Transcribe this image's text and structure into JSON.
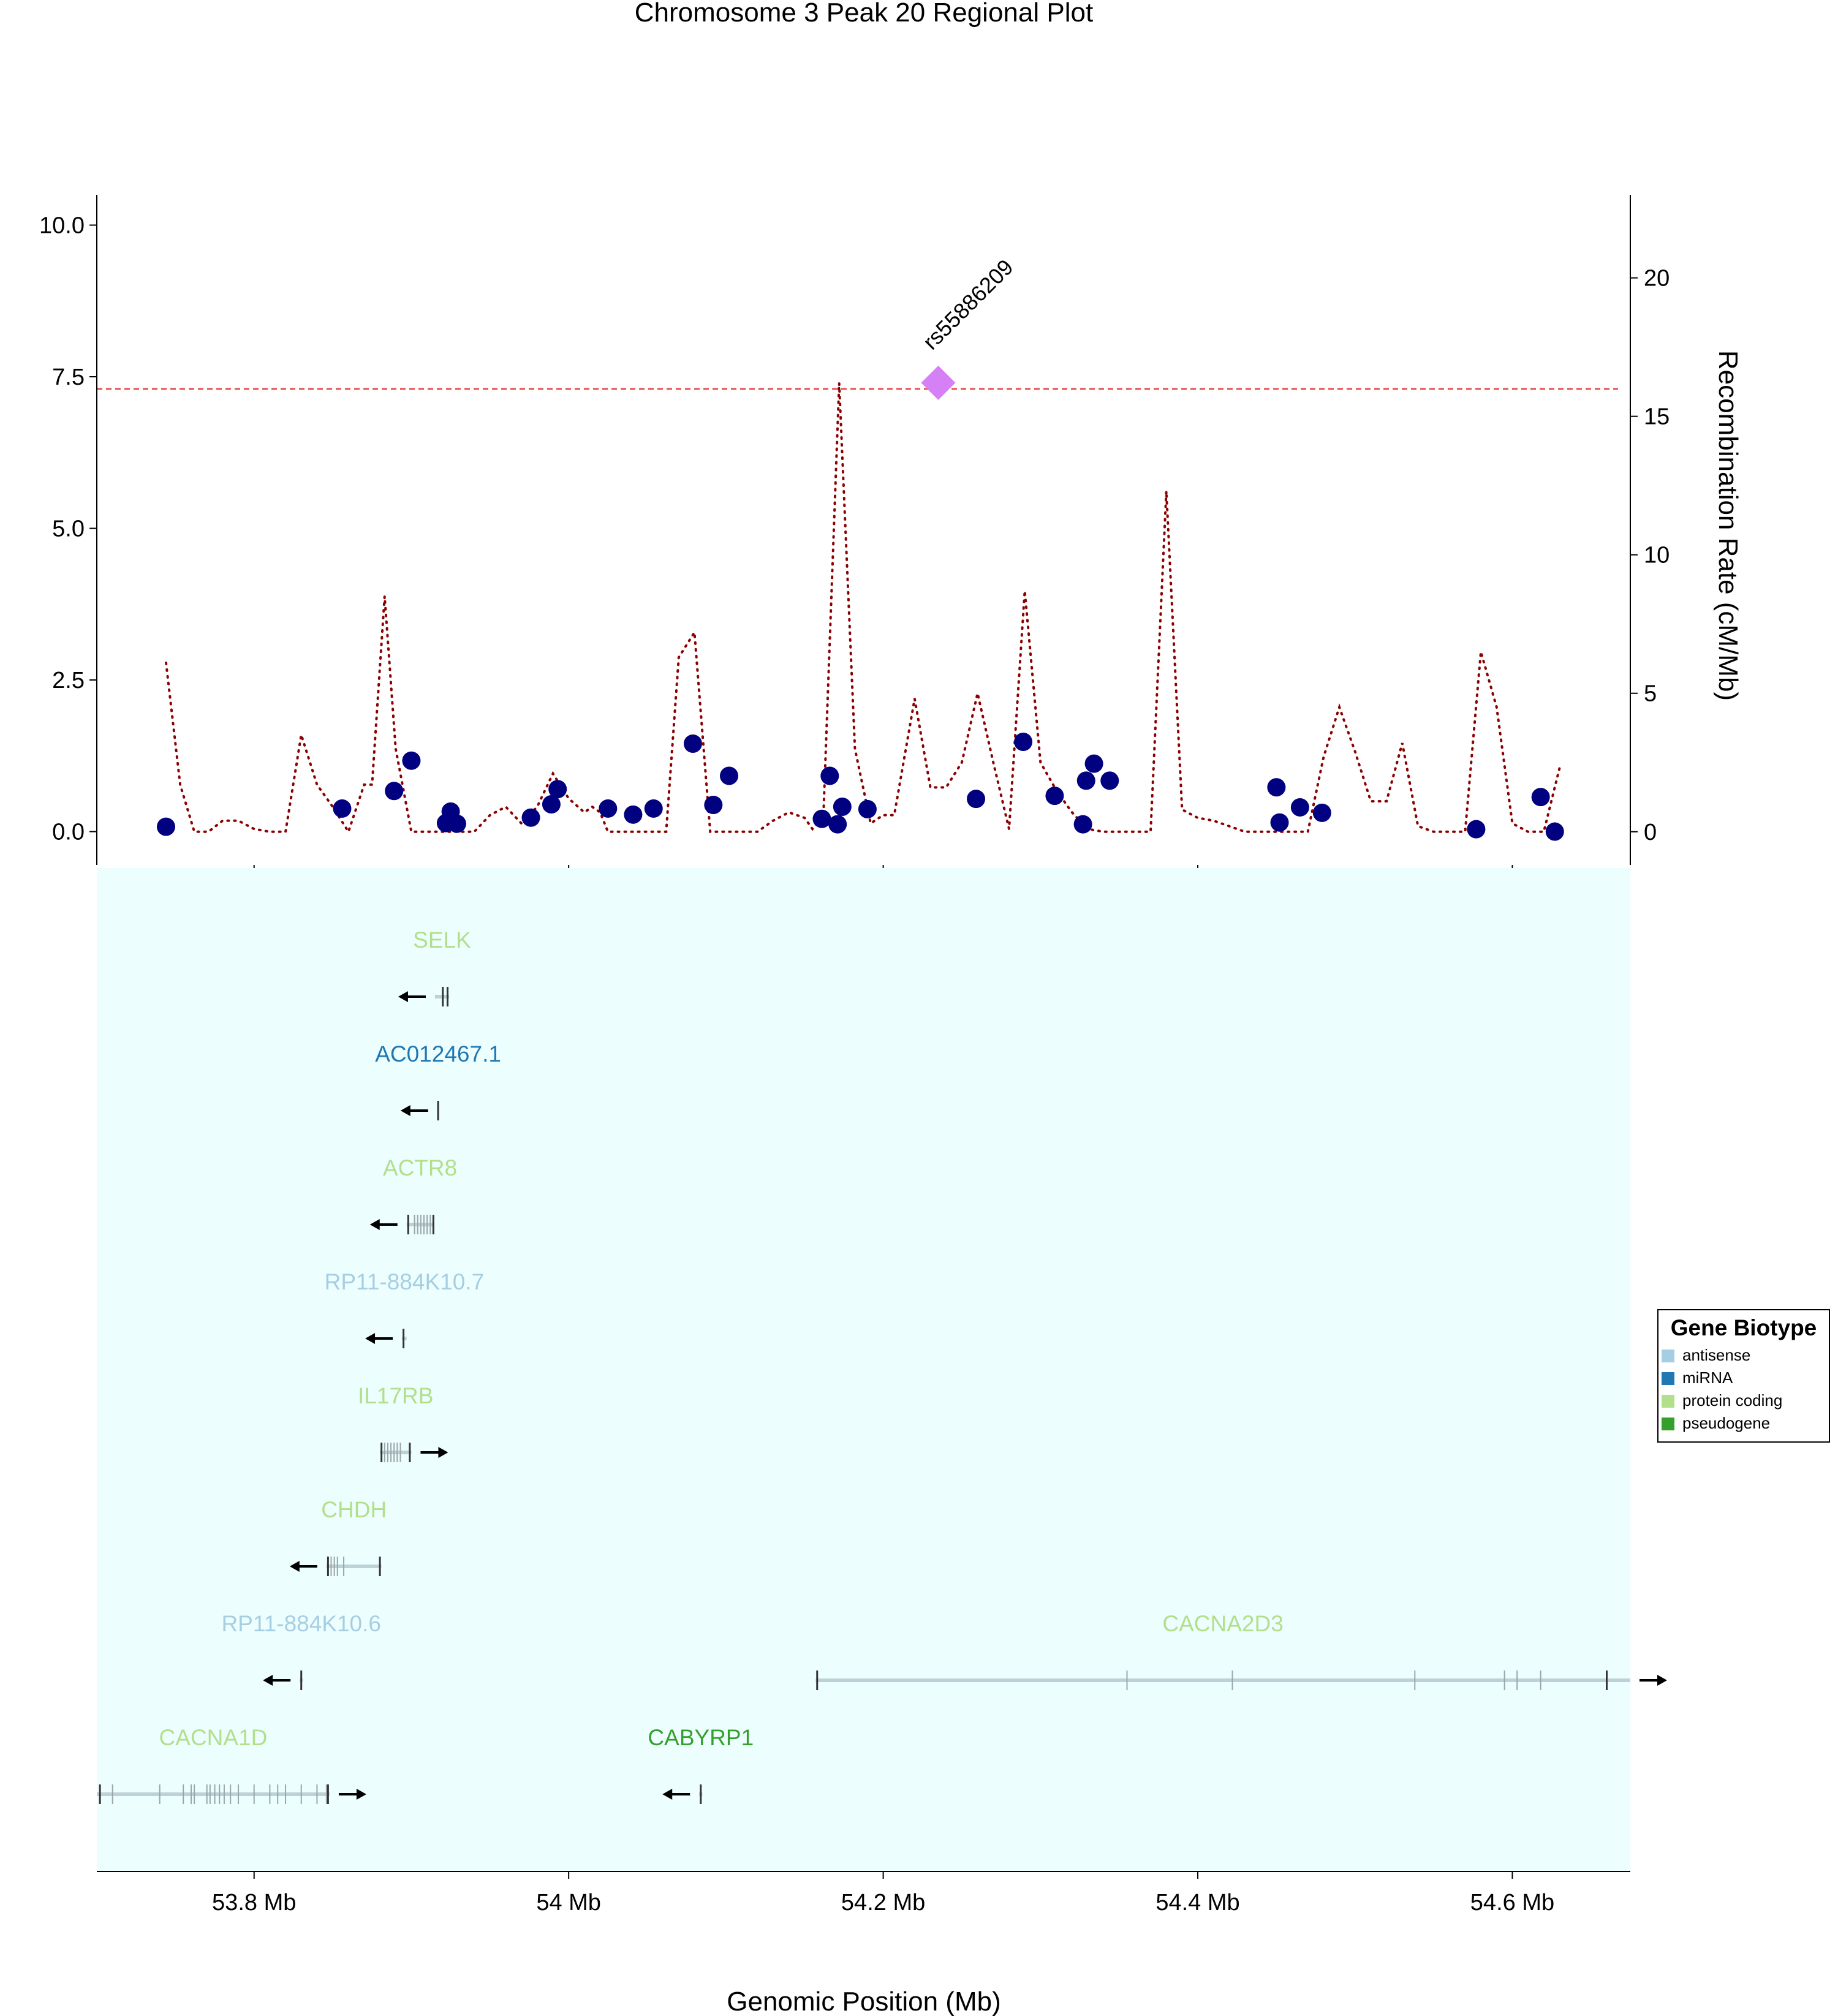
{
  "chart_data": {
    "type": "scatter",
    "title": "Chromosome 3 Peak 20 Regional Plot",
    "xlabel": "Genomic Position (Mb)",
    "y2label": "Recombination Rate (cM/Mb)",
    "xlim": [
      53.7,
      54.675
    ],
    "ylim": [
      -0.55,
      10.5
    ],
    "y2lim": [
      -1.2,
      23
    ],
    "x_ticks": [
      53.8,
      54.0,
      54.2,
      54.4,
      54.6
    ],
    "x_tick_labels": [
      "53.8 Mb",
      "54 Mb",
      "54.2 Mb",
      "54.4 Mb",
      "54.6 Mb"
    ],
    "y_ticks": [
      0,
      2.5,
      5,
      7.5,
      10
    ],
    "y_tick_labels": [
      "0.0",
      "2.5",
      "5.0",
      "7.5",
      "10.0"
    ],
    "y2_ticks": [
      0,
      5,
      10,
      15,
      20
    ],
    "y2_tick_labels": [
      "0",
      "5",
      "10",
      "15",
      "20"
    ],
    "significance_line": 7.3,
    "grid": false,
    "colors": {
      "points": "#000080",
      "lead": "#d580f5",
      "recomb": "#8b0000",
      "sigline": "#e8514f",
      "gene_bg": "#edfefe",
      "antisense": "#a6cee3",
      "miRNA": "#1f78b4",
      "protein_coding": "#b2df8a",
      "pseudogene": "#33a02c"
    },
    "points": [
      {
        "x": 53.744,
        "y": 0.08
      },
      {
        "x": 53.856,
        "y": 0.38
      },
      {
        "x": 53.889,
        "y": 0.67
      },
      {
        "x": 53.9,
        "y": 1.17
      },
      {
        "x": 53.922,
        "y": 0.14
      },
      {
        "x": 53.925,
        "y": 0.33
      },
      {
        "x": 53.929,
        "y": 0.13
      },
      {
        "x": 53.976,
        "y": 0.23
      },
      {
        "x": 53.989,
        "y": 0.45
      },
      {
        "x": 53.993,
        "y": 0.7
      },
      {
        "x": 54.025,
        "y": 0.38
      },
      {
        "x": 54.041,
        "y": 0.28
      },
      {
        "x": 54.054,
        "y": 0.38
      },
      {
        "x": 54.079,
        "y": 1.45
      },
      {
        "x": 54.092,
        "y": 0.44
      },
      {
        "x": 54.102,
        "y": 0.92
      },
      {
        "x": 54.161,
        "y": 0.21
      },
      {
        "x": 54.166,
        "y": 0.92
      },
      {
        "x": 54.171,
        "y": 0.12
      },
      {
        "x": 54.174,
        "y": 0.41
      },
      {
        "x": 54.19,
        "y": 0.37
      },
      {
        "x": 54.259,
        "y": 0.54
      },
      {
        "x": 54.289,
        "y": 1.48
      },
      {
        "x": 54.309,
        "y": 0.59
      },
      {
        "x": 54.327,
        "y": 0.12
      },
      {
        "x": 54.329,
        "y": 0.84
      },
      {
        "x": 54.334,
        "y": 1.12
      },
      {
        "x": 54.344,
        "y": 0.84
      },
      {
        "x": 54.45,
        "y": 0.73
      },
      {
        "x": 54.452,
        "y": 0.15
      },
      {
        "x": 54.465,
        "y": 0.4
      },
      {
        "x": 54.479,
        "y": 0.31
      },
      {
        "x": 54.577,
        "y": 0.04
      },
      {
        "x": 54.618,
        "y": 0.57
      },
      {
        "x": 54.627,
        "y": 0.0
      }
    ],
    "lead_snp": {
      "x": 54.235,
      "y": 7.4,
      "label": "rs55886209"
    },
    "recombination": [
      [
        53.744,
        6.1
      ],
      [
        53.753,
        1.7
      ],
      [
        53.762,
        0.0
      ],
      [
        53.771,
        0.0
      ],
      [
        53.78,
        0.4
      ],
      [
        53.79,
        0.4
      ],
      [
        53.8,
        0.1
      ],
      [
        53.81,
        0.0
      ],
      [
        53.82,
        0.0
      ],
      [
        53.83,
        3.5
      ],
      [
        53.84,
        1.7
      ],
      [
        53.85,
        0.9
      ],
      [
        53.86,
        0.0
      ],
      [
        53.87,
        1.7
      ],
      [
        53.875,
        1.7
      ],
      [
        53.883,
        8.5
      ],
      [
        53.89,
        3.0
      ],
      [
        53.9,
        0.0
      ],
      [
        53.91,
        0.0
      ],
      [
        53.92,
        0.0
      ],
      [
        53.93,
        0.0
      ],
      [
        53.94,
        0.0
      ],
      [
        53.95,
        0.6
      ],
      [
        53.96,
        0.9
      ],
      [
        53.97,
        0.3
      ],
      [
        53.98,
        0.9
      ],
      [
        53.99,
        2.1
      ],
      [
        54.0,
        1.2
      ],
      [
        54.01,
        0.7
      ],
      [
        54.015,
        0.9
      ],
      [
        54.02,
        0.7
      ],
      [
        54.025,
        0.0
      ],
      [
        54.035,
        0.0
      ],
      [
        54.045,
        0.0
      ],
      [
        54.055,
        0.0
      ],
      [
        54.062,
        0.0
      ],
      [
        54.07,
        6.3
      ],
      [
        54.08,
        7.2
      ],
      [
        54.09,
        0.0
      ],
      [
        54.1,
        0.0
      ],
      [
        54.11,
        0.0
      ],
      [
        54.12,
        0.0
      ],
      [
        54.13,
        0.4
      ],
      [
        54.14,
        0.7
      ],
      [
        54.15,
        0.5
      ],
      [
        54.155,
        0.1
      ],
      [
        54.162,
        0.6
      ],
      [
        54.172,
        16.2
      ],
      [
        54.182,
        3.0
      ],
      [
        54.192,
        0.3
      ],
      [
        54.2,
        0.6
      ],
      [
        54.207,
        0.6
      ],
      [
        54.22,
        4.8
      ],
      [
        54.23,
        1.6
      ],
      [
        54.24,
        1.6
      ],
      [
        54.25,
        2.5
      ],
      [
        54.26,
        5.0
      ],
      [
        54.27,
        2.5
      ],
      [
        54.28,
        0.1
      ],
      [
        54.29,
        8.7
      ],
      [
        54.3,
        2.5
      ],
      [
        54.31,
        1.5
      ],
      [
        54.32,
        0.7
      ],
      [
        54.33,
        0.1
      ],
      [
        54.34,
        0.0
      ],
      [
        54.35,
        0.0
      ],
      [
        54.36,
        0.0
      ],
      [
        54.37,
        0.0
      ],
      [
        54.38,
        12.3
      ],
      [
        54.39,
        0.8
      ],
      [
        54.4,
        0.5
      ],
      [
        54.41,
        0.4
      ],
      [
        54.42,
        0.2
      ],
      [
        54.43,
        0.0
      ],
      [
        54.44,
        0.0
      ],
      [
        54.45,
        0.0
      ],
      [
        54.46,
        0.0
      ],
      [
        54.47,
        0.0
      ],
      [
        54.48,
        2.7
      ],
      [
        54.49,
        4.5
      ],
      [
        54.5,
        2.9
      ],
      [
        54.51,
        1.1
      ],
      [
        54.52,
        1.1
      ],
      [
        54.53,
        3.2
      ],
      [
        54.54,
        0.2
      ],
      [
        54.55,
        0.0
      ],
      [
        54.56,
        0.0
      ],
      [
        54.57,
        0.0
      ],
      [
        54.58,
        6.5
      ],
      [
        54.59,
        4.5
      ],
      [
        54.6,
        0.3
      ],
      [
        54.61,
        0.0
      ],
      [
        54.62,
        0.0
      ],
      [
        54.63,
        2.3
      ]
    ],
    "genes": [
      {
        "name": "SELK",
        "biotype": "protein_coding",
        "row": 0,
        "start": 53.915,
        "end": 53.924,
        "strand": "-",
        "exons": [
          53.92,
          53.923
        ]
      },
      {
        "name": "AC012467.1",
        "biotype": "miRNA",
        "row": 1,
        "start": 53.9165,
        "end": 53.9175,
        "strand": "-",
        "exons": [
          53.917
        ]
      },
      {
        "name": "ACTR8",
        "biotype": "protein_coding",
        "row": 2,
        "start": 53.897,
        "end": 53.914,
        "strand": "-",
        "exons": [
          53.898,
          53.902,
          53.904,
          53.906,
          53.908,
          53.91,
          53.912,
          53.914
        ]
      },
      {
        "name": "RP11-884K10.7",
        "biotype": "antisense",
        "row": 3,
        "start": 53.894,
        "end": 53.897,
        "strand": "-",
        "exons": [
          53.895
        ]
      },
      {
        "name": "IL17RB",
        "biotype": "protein_coding",
        "row": 4,
        "start": 53.88,
        "end": 53.9,
        "strand": "+",
        "exons": [
          53.881,
          53.883,
          53.885,
          53.887,
          53.889,
          53.891,
          53.893,
          53.899
        ]
      },
      {
        "name": "CHDH",
        "biotype": "protein_coding",
        "row": 5,
        "start": 53.846,
        "end": 53.881,
        "strand": "-",
        "exons": [
          53.847,
          53.849,
          53.851,
          53.853,
          53.857,
          53.88
        ]
      },
      {
        "name": "RP11-884K10.6",
        "biotype": "antisense",
        "row": 6,
        "start": 53.829,
        "end": 53.831,
        "strand": "-",
        "exons": [
          53.83
        ]
      },
      {
        "name": "CACNA2D3",
        "biotype": "protein_coding",
        "row": 6,
        "start": 54.157,
        "end": 54.675,
        "strand": "+",
        "exons": [
          54.158,
          54.355,
          54.422,
          54.538,
          54.595,
          54.603,
          54.618,
          54.66
        ]
      },
      {
        "name": "CACNA1D",
        "biotype": "protein_coding",
        "row": 7,
        "start": 53.7,
        "end": 53.848,
        "strand": "+",
        "exons": [
          53.702,
          53.71,
          53.74,
          53.755,
          53.76,
          53.762,
          53.77,
          53.772,
          53.775,
          53.778,
          53.781,
          53.785,
          53.79,
          53.8,
          53.81,
          53.815,
          53.82,
          53.83,
          53.84,
          53.846,
          53.847
        ]
      },
      {
        "name": "CABYRP1",
        "biotype": "pseudogene",
        "row": 7,
        "start": 54.083,
        "end": 54.085,
        "strand": "-",
        "exons": [
          54.084
        ]
      }
    ],
    "legend": {
      "title": "Gene Biotype",
      "position": "right",
      "entries": [
        {
          "label": "antisense",
          "key": "antisense"
        },
        {
          "label": "miRNA",
          "key": "miRNA"
        },
        {
          "label": "protein coding",
          "key": "protein_coding"
        },
        {
          "label": "pseudogene",
          "key": "pseudogene"
        }
      ]
    }
  }
}
